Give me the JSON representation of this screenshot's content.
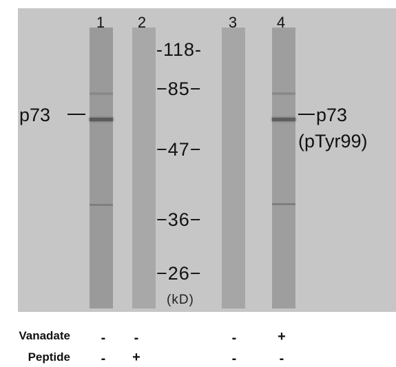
{
  "lanes": [
    {
      "number": "1"
    },
    {
      "number": "2"
    },
    {
      "number": "3"
    },
    {
      "number": "4"
    }
  ],
  "markers": [
    "-118-",
    "−85−",
    "−47−",
    "−36−",
    "−26−"
  ],
  "unit": "(kD)",
  "left_label": "p73",
  "right_label": {
    "line1": "p73",
    "line2": "(pTyr99)"
  },
  "treatments": [
    {
      "name": "Vanadate",
      "signs": [
        "-",
        "-",
        "-",
        "+"
      ]
    },
    {
      "name": "Peptide",
      "signs": [
        "-",
        "+",
        "-",
        "-"
      ]
    }
  ]
}
